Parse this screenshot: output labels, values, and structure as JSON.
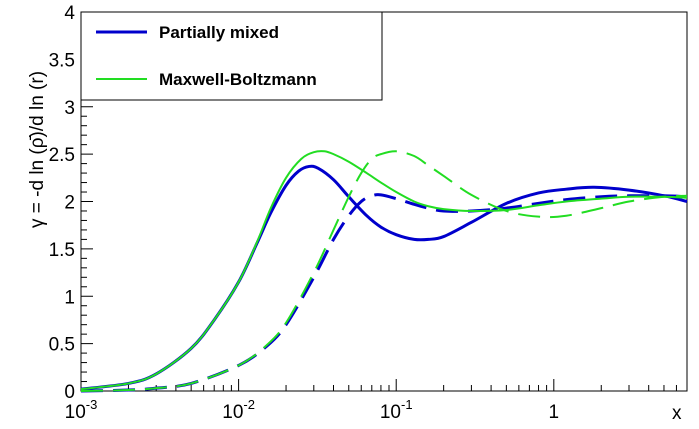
{
  "chart_data": {
    "type": "line",
    "title": "",
    "xlabel": "x",
    "ylabel": "γ = -d ln (ρ̄)/d ln (r)",
    "xscale": "log",
    "xlim": [
      0.001,
      7.0
    ],
    "ylim": [
      0,
      4
    ],
    "x_ticks": [
      {
        "value": 0.001,
        "base": "10",
        "exp": "-3"
      },
      {
        "value": 0.01,
        "base": "10",
        "exp": "-2"
      },
      {
        "value": 0.1,
        "base": "10",
        "exp": "-1"
      },
      {
        "value": 1,
        "base": "1",
        "exp": ""
      }
    ],
    "y_ticks": [
      {
        "value": 0,
        "label": "0"
      },
      {
        "value": 0.5,
        "label": "0.5"
      },
      {
        "value": 1,
        "label": "1"
      },
      {
        "value": 1.5,
        "label": "1.5"
      },
      {
        "value": 2,
        "label": "2"
      },
      {
        "value": 2.5,
        "label": "2.5"
      },
      {
        "value": 3,
        "label": "3"
      },
      {
        "value": 3.5,
        "label": "3.5"
      },
      {
        "value": 4,
        "label": "4"
      }
    ],
    "grid": false,
    "legend_position": "top-left",
    "legend": [
      {
        "label": "Partially mixed",
        "color": "#0000cc",
        "width": 3
      },
      {
        "label": "Maxwell-Boltzmann",
        "color": "#22dd22",
        "width": 2
      }
    ],
    "series": [
      {
        "color": "#0000cc",
        "dash": "solid",
        "width": 3,
        "x": [
          0.001,
          0.002,
          0.003,
          0.005,
          0.007,
          0.01,
          0.013,
          0.016,
          0.02,
          0.024,
          0.028,
          0.032,
          0.04,
          0.05,
          0.065,
          0.08,
          0.1,
          0.13,
          0.16,
          0.2,
          0.3,
          0.5,
          0.8,
          1.2,
          1.8,
          3,
          5,
          7
        ],
        "y": [
          0.02,
          0.08,
          0.18,
          0.45,
          0.75,
          1.15,
          1.55,
          1.88,
          2.17,
          2.32,
          2.37,
          2.35,
          2.23,
          2.05,
          1.85,
          1.73,
          1.65,
          1.6,
          1.6,
          1.63,
          1.78,
          1.98,
          2.09,
          2.13,
          2.15,
          2.12,
          2.06,
          2.0
        ]
      },
      {
        "color": "#0000cc",
        "dash": "dashed",
        "width": 3,
        "x": [
          0.001,
          0.002,
          0.003,
          0.005,
          0.01,
          0.015,
          0.02,
          0.03,
          0.04,
          0.05,
          0.06,
          0.07,
          0.08,
          0.1,
          0.13,
          0.16,
          0.2,
          0.3,
          0.5,
          0.8,
          1.2,
          2,
          3,
          5,
          7
        ],
        "y": [
          0.0,
          0.01,
          0.03,
          0.08,
          0.27,
          0.47,
          0.7,
          1.2,
          1.6,
          1.85,
          2.0,
          2.06,
          2.07,
          2.03,
          1.97,
          1.93,
          1.9,
          1.9,
          1.93,
          1.98,
          2.02,
          2.05,
          2.06,
          2.06,
          2.05
        ]
      },
      {
        "color": "#22dd22",
        "dash": "solid",
        "width": 2,
        "x": [
          0.001,
          0.002,
          0.003,
          0.005,
          0.007,
          0.01,
          0.013,
          0.016,
          0.02,
          0.025,
          0.03,
          0.035,
          0.04,
          0.05,
          0.065,
          0.08,
          0.1,
          0.13,
          0.16,
          0.2,
          0.3,
          0.5,
          0.8,
          1.2,
          2,
          3,
          5,
          7
        ],
        "y": [
          0.02,
          0.08,
          0.18,
          0.45,
          0.75,
          1.15,
          1.56,
          1.93,
          2.25,
          2.45,
          2.52,
          2.53,
          2.5,
          2.42,
          2.3,
          2.2,
          2.1,
          2.0,
          1.95,
          1.92,
          1.9,
          1.91,
          1.96,
          2.0,
          2.03,
          2.05,
          2.05,
          2.04
        ]
      },
      {
        "color": "#22dd22",
        "dash": "dashed",
        "width": 2,
        "x": [
          0.001,
          0.002,
          0.003,
          0.005,
          0.01,
          0.015,
          0.02,
          0.03,
          0.04,
          0.05,
          0.06,
          0.07,
          0.08,
          0.1,
          0.13,
          0.16,
          0.2,
          0.3,
          0.5,
          0.8,
          1.2,
          2,
          3,
          5,
          7
        ],
        "y": [
          0.0,
          0.01,
          0.03,
          0.08,
          0.27,
          0.48,
          0.72,
          1.25,
          1.7,
          2.05,
          2.3,
          2.45,
          2.5,
          2.53,
          2.48,
          2.38,
          2.27,
          2.07,
          1.9,
          1.84,
          1.85,
          1.93,
          2.0,
          2.05,
          2.06
        ]
      }
    ]
  }
}
